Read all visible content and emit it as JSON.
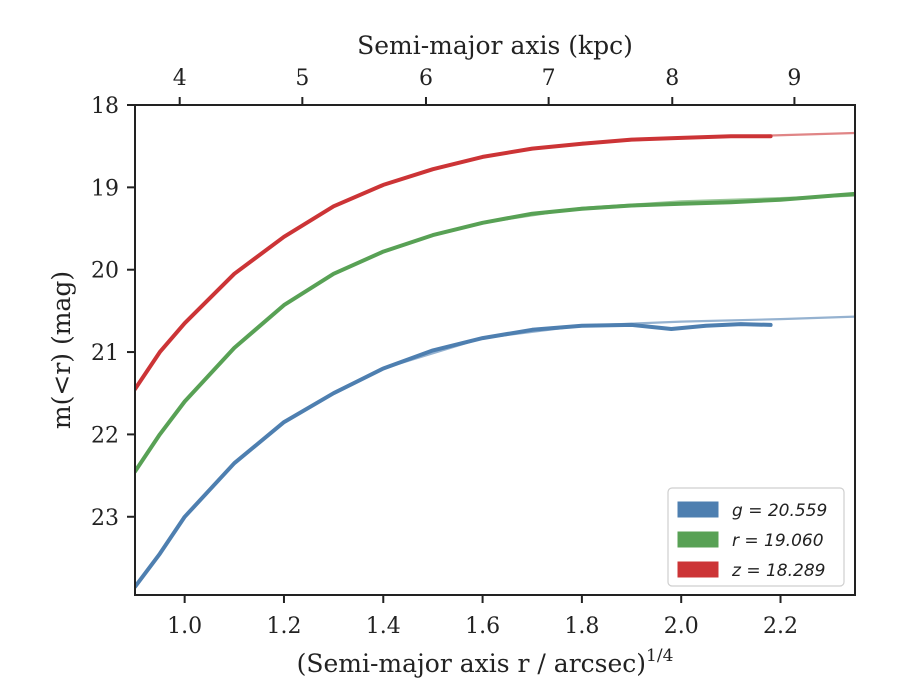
{
  "chart_data": {
    "type": "line",
    "xlabel": "(Semi-major axis r / arcsec)",
    "xlabel_exponent": "1/4",
    "ylabel": "m(<r) (mag)",
    "top_xlabel": "Semi-major axis (kpc)",
    "xlim": [
      0.9,
      2.35
    ],
    "ylim": [
      18.0,
      23.95
    ],
    "y_inverted": true,
    "x_ticks": [
      1.0,
      1.2,
      1.4,
      1.6,
      1.8,
      2.0,
      2.2
    ],
    "x_tick_labels": [
      "1.0",
      "1.2",
      "1.4",
      "1.6",
      "1.8",
      "2.0",
      "2.2"
    ],
    "y_ticks": [
      18,
      19,
      20,
      21,
      22,
      23
    ],
    "y_tick_labels": [
      "18",
      "19",
      "20",
      "21",
      "22",
      "23"
    ],
    "top_ticks": [
      {
        "value": 4,
        "at_x": 0.99
      },
      {
        "value": 5,
        "at_x": 1.237
      },
      {
        "value": 6,
        "at_x": 1.486
      },
      {
        "value": 7,
        "at_x": 1.733
      },
      {
        "value": 8,
        "at_x": 1.982
      },
      {
        "value": 9,
        "at_x": 2.228
      }
    ],
    "legend": {
      "placement": "bottom-right"
    },
    "grid": false,
    "series": [
      {
        "name": "g = 20.559",
        "legend_label": "g = 20.559",
        "color": "#4e7fb0",
        "x": [
          0.9,
          0.95,
          1.0,
          1.1,
          1.2,
          1.3,
          1.4,
          1.5,
          1.6,
          1.7,
          1.8,
          1.9,
          1.98,
          2.05,
          2.12,
          2.18
        ],
        "y": [
          23.85,
          23.45,
          23.0,
          22.35,
          21.85,
          21.5,
          21.2,
          20.98,
          20.83,
          20.73,
          20.68,
          20.67,
          20.72,
          20.68,
          20.66,
          20.67
        ],
        "model_x": [
          1.4,
          1.6,
          1.8,
          2.0,
          2.2,
          2.35
        ],
        "model_y": [
          21.2,
          20.83,
          20.68,
          20.63,
          20.6,
          20.57
        ]
      },
      {
        "name": "r = 19.060",
        "legend_label": "r = 19.060",
        "color": "#58a155",
        "x": [
          0.9,
          0.95,
          1.0,
          1.1,
          1.2,
          1.3,
          1.4,
          1.5,
          1.6,
          1.7,
          1.8,
          1.9,
          2.0,
          2.1,
          2.2,
          2.35
        ],
        "y": [
          22.45,
          22.0,
          21.6,
          20.95,
          20.43,
          20.05,
          19.78,
          19.58,
          19.43,
          19.32,
          19.26,
          19.22,
          19.2,
          19.18,
          19.15,
          19.08
        ],
        "model_x": [
          1.6,
          1.8,
          2.0,
          2.2,
          2.35
        ],
        "model_y": [
          19.43,
          19.25,
          19.17,
          19.13,
          19.1
        ]
      },
      {
        "name": "z = 18.289",
        "legend_label": "z = 18.289",
        "color": "#cc3436",
        "x": [
          0.9,
          0.95,
          1.0,
          1.1,
          1.2,
          1.3,
          1.4,
          1.5,
          1.6,
          1.7,
          1.8,
          1.9,
          2.0,
          2.1,
          2.18
        ],
        "y": [
          21.45,
          21.0,
          20.65,
          20.05,
          19.6,
          19.23,
          18.97,
          18.78,
          18.63,
          18.53,
          18.47,
          18.42,
          18.4,
          18.38,
          18.38
        ],
        "model_x": [
          1.8,
          2.0,
          2.18,
          2.35
        ],
        "model_y": [
          18.46,
          18.4,
          18.37,
          18.34
        ]
      }
    ]
  }
}
